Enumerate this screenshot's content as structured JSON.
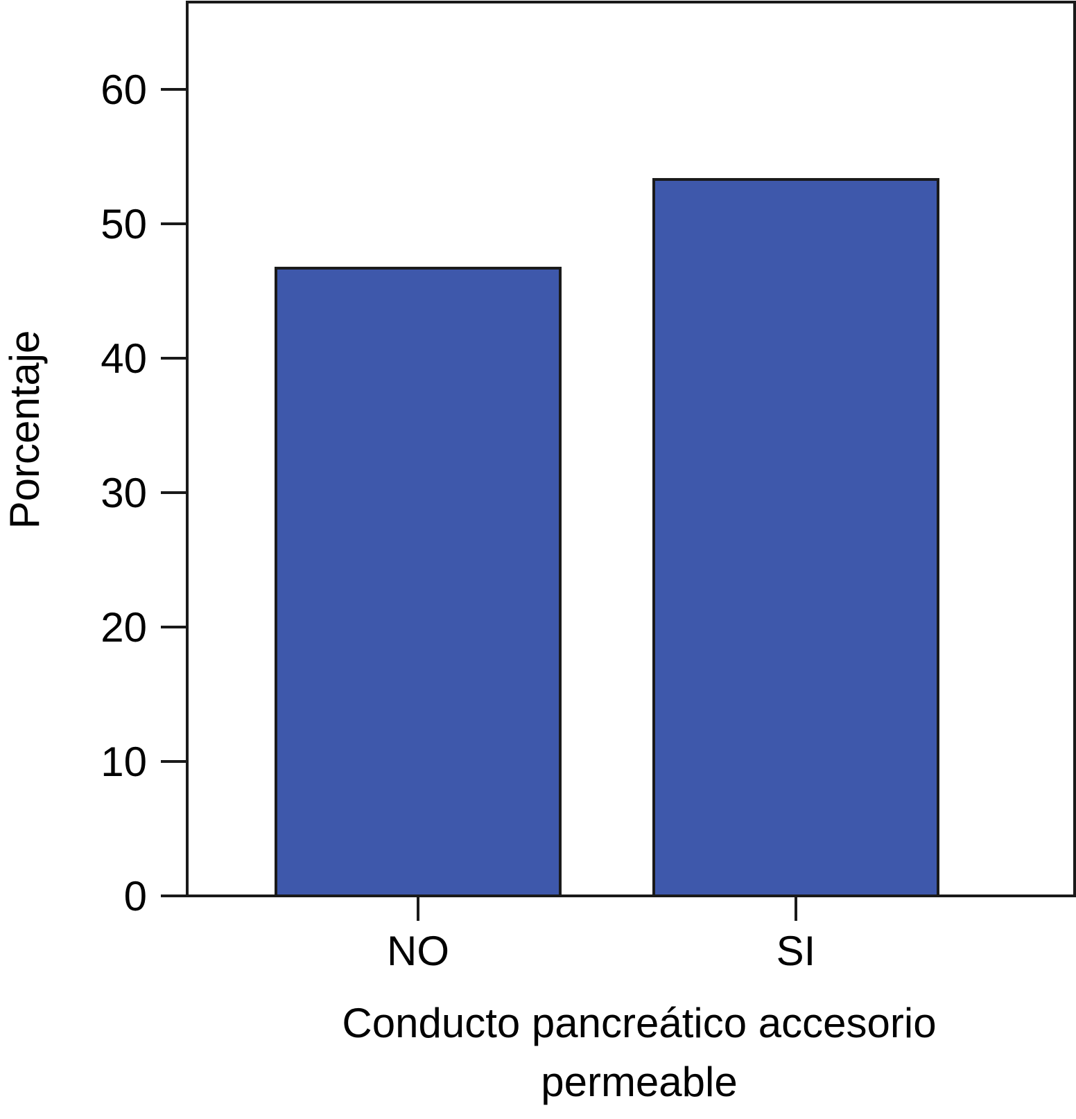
{
  "chart_data": {
    "type": "bar",
    "categories": [
      "NO",
      "SI"
    ],
    "values": [
      46.7,
      53.3
    ],
    "title": "",
    "xlabel": [
      "Conducto pancreático accesorio",
      "permeable"
    ],
    "ylabel": "Porcentaje",
    "ylim": [
      0,
      66
    ],
    "yticks": [
      0,
      10,
      20,
      30,
      40,
      50,
      60
    ],
    "grid": false,
    "bar_color": "#3e58ab",
    "bar_edge_color": "#1a1a1a"
  }
}
